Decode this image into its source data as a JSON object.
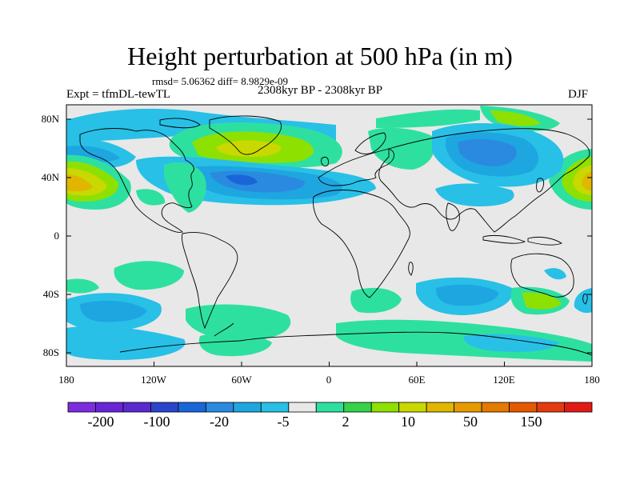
{
  "title": "Height perturbation at 500 hPa (in m)",
  "stats": "rmsd= 5.06362 diff= 8.9829e-09",
  "experiment": "Expt = tfmDL-tewTL",
  "period": "2308kyr BP - 2308kyr BP",
  "season": "DJF",
  "lat_ticks": [
    "80N",
    "40N",
    "0",
    "40S",
    "80S"
  ],
  "lon_ticks": [
    "180",
    "120W",
    "60W",
    "0",
    "60E",
    "120E",
    "180"
  ],
  "colorbar": {
    "colors": [
      "#7d2be0",
      "#6a24d8",
      "#5a2ad0",
      "#2a44cc",
      "#1a66d8",
      "#2a8ae0",
      "#1ea6e0",
      "#28c0e6",
      "#e8e8e8",
      "#2ee0a0",
      "#36d24a",
      "#8ee000",
      "#c8d800",
      "#e0b600",
      "#e69a00",
      "#e47a00",
      "#e45a00",
      "#e43a10",
      "#e21a16"
    ],
    "labels": [
      "-200",
      "-100",
      "-20",
      "-5",
      "2",
      "10",
      "50",
      "150"
    ]
  },
  "colors": {
    "background": "#e8e8e8",
    "neg_strong": "#1a66d8",
    "neg_mid": "#2a8ae0",
    "neg_light": "#28c0e6",
    "pos_light": "#2ee0a0",
    "pos_mid": "#8ee000",
    "pos_strong": "#c8d800",
    "pos_high": "#e0b600"
  }
}
